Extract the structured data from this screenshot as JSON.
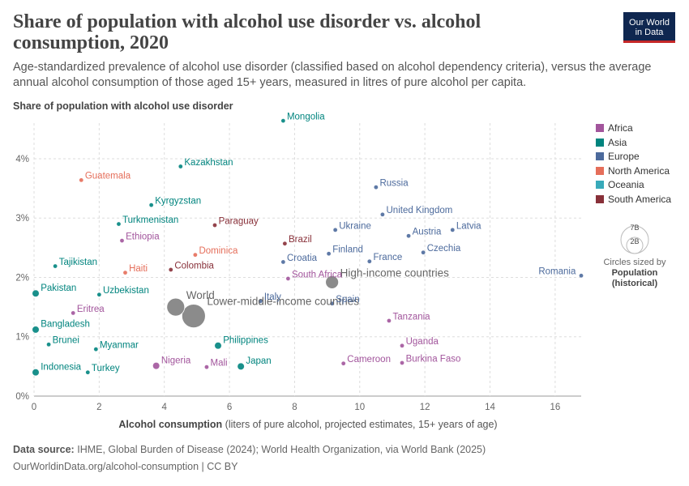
{
  "header": {
    "title": "Share of population with alcohol use disorder vs. alcohol consumption, 2020",
    "subtitle": "Age-standardized prevalence of alcohol use disorder (classified based on alcohol dependency criteria), versus the average annual alcohol consumption of those aged 15+ years, measured in litres of pure alcohol per capita.",
    "logo_line1": "Our World",
    "logo_line2": "in Data"
  },
  "legend": {
    "items": [
      {
        "label": "Africa",
        "color": "#a2559c"
      },
      {
        "label": "Asia",
        "color": "#00847e"
      },
      {
        "label": "Europe",
        "color": "#4c6a9c"
      },
      {
        "label": "North America",
        "color": "#e56e5a"
      },
      {
        "label": "Oceania",
        "color": "#38aaba"
      },
      {
        "label": "South America",
        "color": "#883039"
      }
    ],
    "size_big": "7B",
    "size_small": "2B",
    "size_note": "Circles sized by",
    "size_variable": "Population (historical)"
  },
  "footer": {
    "source_label": "Data source:",
    "source_text": "IHME, Global Burden of Disease (2024); World Health Organization, via World Bank (2025)",
    "url": "OurWorldinData.org/alcohol-consumption | CC BY"
  },
  "chart_data": {
    "type": "scatter",
    "title": "Share of population with alcohol use disorder vs. alcohol consumption, 2020",
    "ylabel": "Share of population with alcohol use disorder",
    "xlabel": "Alcohol consumption",
    "xlabel_note": "(liters of pure alcohol, projected estimates, 15+ years of age)",
    "xlim": [
      0,
      16.8
    ],
    "ylim": [
      0,
      4.6
    ],
    "xticks": [
      "0",
      "2",
      "4",
      "6",
      "8",
      "10",
      "12",
      "14",
      "16"
    ],
    "yticks": [
      "0%",
      "1%",
      "2%",
      "3%",
      "4%"
    ],
    "grid": true,
    "legend_position": "right",
    "points": [
      {
        "label": "Mongolia",
        "region": "Asia",
        "x": 7.65,
        "y": 4.64,
        "size": 0
      },
      {
        "label": "Kazakhstan",
        "region": "Asia",
        "x": 4.5,
        "y": 3.87,
        "size": 0
      },
      {
        "label": "Guatemala",
        "region": "North America",
        "x": 1.45,
        "y": 3.64,
        "size": 0
      },
      {
        "label": "Kyrgyzstan",
        "region": "Asia",
        "x": 3.6,
        "y": 3.22,
        "size": 0
      },
      {
        "label": "Turkmenistan",
        "region": "Asia",
        "x": 2.6,
        "y": 2.9,
        "size": 0
      },
      {
        "label": "Paraguay",
        "region": "South America",
        "x": 5.55,
        "y": 2.88,
        "size": 0
      },
      {
        "label": "Ethiopia",
        "region": "Africa",
        "x": 2.7,
        "y": 2.62,
        "size": 0
      },
      {
        "label": "Brazil",
        "region": "South America",
        "x": 7.7,
        "y": 2.57,
        "size": 0
      },
      {
        "label": "Dominica",
        "region": "North America",
        "x": 4.95,
        "y": 2.38,
        "size": 0
      },
      {
        "label": "Haiti",
        "region": "North America",
        "x": 2.8,
        "y": 2.08,
        "size": 0
      },
      {
        "label": "Colombia",
        "region": "South America",
        "x": 4.2,
        "y": 2.13,
        "size": 0
      },
      {
        "label": "Tajikistan",
        "region": "Asia",
        "x": 0.65,
        "y": 2.19,
        "size": 0
      },
      {
        "label": "Croatia",
        "region": "Europe",
        "x": 7.65,
        "y": 2.26,
        "size": 0
      },
      {
        "label": "South Africa",
        "region": "Africa",
        "x": 7.8,
        "y": 1.98,
        "size": 0
      },
      {
        "label": "Russia",
        "region": "Europe",
        "x": 10.5,
        "y": 3.52,
        "size": 0
      },
      {
        "label": "United Kingdom",
        "region": "Europe",
        "x": 10.7,
        "y": 3.06,
        "size": 0
      },
      {
        "label": "Ukraine",
        "region": "Europe",
        "x": 9.25,
        "y": 2.8,
        "size": 0
      },
      {
        "label": "Latvia",
        "region": "Europe",
        "x": 12.85,
        "y": 2.8,
        "size": 0
      },
      {
        "label": "Austria",
        "region": "Europe",
        "x": 11.5,
        "y": 2.7,
        "size": 0
      },
      {
        "label": "Finland",
        "region": "Europe",
        "x": 9.05,
        "y": 2.4,
        "size": 0
      },
      {
        "label": "Czechia",
        "region": "Europe",
        "x": 11.95,
        "y": 2.42,
        "size": 0
      },
      {
        "label": "France",
        "region": "Europe",
        "x": 10.3,
        "y": 2.27,
        "size": 0
      },
      {
        "label": "Romania",
        "region": "Europe",
        "x": 16.8,
        "y": 2.03,
        "size": 0
      },
      {
        "label": "High-income countries",
        "region": "",
        "x": 9.15,
        "y": 1.92,
        "size": 2
      },
      {
        "label": "Pakistan",
        "region": "Asia",
        "x": 0.05,
        "y": 1.73,
        "size": 1
      },
      {
        "label": "Uzbekistan",
        "region": "Asia",
        "x": 2.0,
        "y": 1.71,
        "size": 0
      },
      {
        "label": "World",
        "region": "",
        "x": 4.35,
        "y": 1.5,
        "size": 3
      },
      {
        "label": "Spain",
        "region": "Europe",
        "x": 9.15,
        "y": 1.56,
        "size": 0
      },
      {
        "label": "Italy",
        "region": "Europe",
        "x": 6.95,
        "y": 1.6,
        "size": 0
      },
      {
        "label": "Eritrea",
        "region": "Africa",
        "x": 1.2,
        "y": 1.4,
        "size": 0
      },
      {
        "label": "Lower-middle-income countries",
        "region": "",
        "x": 4.9,
        "y": 1.35,
        "size": 4
      },
      {
        "label": "Tanzania",
        "region": "Africa",
        "x": 10.9,
        "y": 1.27,
        "size": 0
      },
      {
        "label": "Bangladesh",
        "region": "Asia",
        "x": 0.05,
        "y": 1.12,
        "size": 1
      },
      {
        "label": "Brunei",
        "region": "Asia",
        "x": 0.45,
        "y": 0.87,
        "size": 0
      },
      {
        "label": "Myanmar",
        "region": "Asia",
        "x": 1.9,
        "y": 0.79,
        "size": 0
      },
      {
        "label": "Philippines",
        "region": "Asia",
        "x": 5.65,
        "y": 0.85,
        "size": 1
      },
      {
        "label": "Uganda",
        "region": "Africa",
        "x": 11.3,
        "y": 0.85,
        "size": 0
      },
      {
        "label": "Nigeria",
        "region": "Africa",
        "x": 3.75,
        "y": 0.51,
        "size": 1
      },
      {
        "label": "Mali",
        "region": "Africa",
        "x": 5.3,
        "y": 0.49,
        "size": 0
      },
      {
        "label": "Japan",
        "region": "Asia",
        "x": 6.35,
        "y": 0.5,
        "size": 1
      },
      {
        "label": "Cameroon",
        "region": "Africa",
        "x": 9.5,
        "y": 0.55,
        "size": 0
      },
      {
        "label": "Burkina Faso",
        "region": "Africa",
        "x": 11.3,
        "y": 0.56,
        "size": 0
      },
      {
        "label": "Indonesia",
        "region": "Asia",
        "x": 0.05,
        "y": 0.4,
        "size": 1
      },
      {
        "label": "Turkey",
        "region": "Asia",
        "x": 1.65,
        "y": 0.4,
        "size": 0
      }
    ]
  }
}
